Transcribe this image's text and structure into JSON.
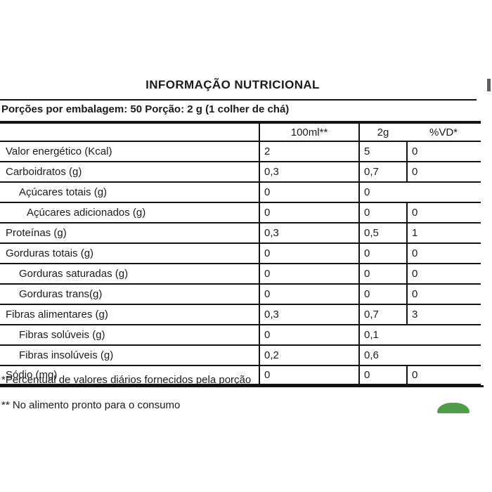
{
  "title": "INFORMAÇÃO NUTRICIONAL",
  "serving_line": "Porções por embalagem: 50 Porção: 2 g (1 colher de chá)",
  "table": {
    "columns": [
      "100ml**",
      "2g",
      "%VD*"
    ],
    "rows": [
      {
        "label": "Valor energético (Kcal)",
        "indent": 0,
        "v100": "2",
        "v2g": "5",
        "vd": "0"
      },
      {
        "label": "Carboidratos (g)",
        "indent": 0,
        "v100": "0,3",
        "v2g": "0,7",
        "vd": "0"
      },
      {
        "label": "Açúcares totais (g)",
        "indent": 1,
        "v100": "0",
        "v2g": "0",
        "vd": null
      },
      {
        "label": "Açúcares adicionados (g)",
        "indent": 2,
        "v100": "0",
        "v2g": "0",
        "vd": "0"
      },
      {
        "label": "Proteínas (g)",
        "indent": 0,
        "v100": "0,3",
        "v2g": "0,5",
        "vd": "1"
      },
      {
        "label": "Gorduras totais (g)",
        "indent": 0,
        "v100": "0",
        "v2g": "0",
        "vd": "0"
      },
      {
        "label": "Gorduras saturadas (g)",
        "indent": 1,
        "v100": "0",
        "v2g": "0",
        "vd": "0"
      },
      {
        "label": "Gorduras trans(g)",
        "indent": 1,
        "v100": "0",
        "v2g": "0",
        "vd": "0"
      },
      {
        "label": "Fibras alimentares (g)",
        "indent": 0,
        "v100": "0,3",
        "v2g": "0,7",
        "vd": "3"
      },
      {
        "label": "Fibras solúveis (g)",
        "indent": 1,
        "v100": "0",
        "v2g": "0,1",
        "vd": null
      },
      {
        "label": "Fibras insolúveis (g)",
        "indent": 1,
        "v100": "0,2",
        "v2g": "0,6",
        "vd": null
      },
      {
        "label": "Sódio (mg)",
        "indent": 0,
        "v100": "0",
        "v2g": "0",
        "vd": "0"
      }
    ]
  },
  "footnotes": {
    "daily_values": "*Percentual de valores diários fornecidos pela porção",
    "prepared": "** No alimento pronto para o consumo"
  },
  "colors": {
    "line": "#141414",
    "text": "#1b1b1b",
    "logo_green": "#4f9d48",
    "edge_mark": "#5f5f5f"
  }
}
